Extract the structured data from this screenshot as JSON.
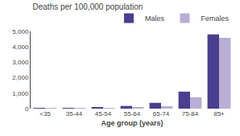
{
  "chart_data": {
    "type": "bar",
    "title": "Deaths per 100,000 population",
    "xlabel": "Age group (years)",
    "categories": [
      "<35",
      "35-44",
      "45-54",
      "55-64",
      "65-74",
      "75-84",
      "85+"
    ],
    "series": [
      {
        "name": "Males",
        "color": "#4a3f8f",
        "values": [
          5,
          18,
          75,
          175,
          375,
          1100,
          4800
        ]
      },
      {
        "name": "Females",
        "color": "#b9aed4",
        "values": [
          3,
          8,
          35,
          85,
          155,
          740,
          4580
        ]
      }
    ],
    "ylim": [
      0,
      5000
    ],
    "yticks": [
      0,
      {
        "value": 1000,
        "label": "1,000"
      },
      {
        "value": 2000,
        "label": "2,000"
      },
      {
        "value": 3000,
        "label": "3,000"
      },
      {
        "value": 4000,
        "label": "4,000"
      },
      {
        "value": 5000,
        "label": "5,000"
      }
    ],
    "grid": false,
    "legend": "upper right"
  }
}
